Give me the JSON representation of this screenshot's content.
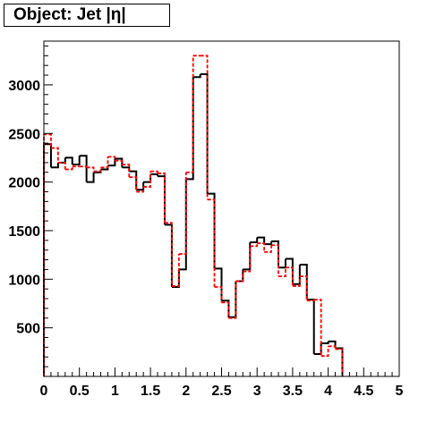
{
  "chart_data": {
    "type": "histogram",
    "title": "Object: Jet |η|",
    "xlabel": "",
    "ylabel": "",
    "xlim": [
      0,
      5
    ],
    "ylim": [
      0,
      3450
    ],
    "bin_width": 0.1,
    "x_ticks": [
      0,
      0.5,
      1,
      1.5,
      2,
      2.5,
      3,
      3.5,
      4,
      4.5,
      5
    ],
    "x_tick_labels": [
      "0",
      "0.5",
      "1",
      "1.5",
      "2",
      "2.5",
      "3",
      "3.5",
      "4",
      "4.5",
      "5"
    ],
    "y_ticks": [
      500,
      1000,
      1500,
      2000,
      2500,
      3000
    ],
    "y_tick_labels": [
      "500",
      "1000",
      "1500",
      "2000",
      "2500",
      "3000"
    ],
    "grid": false,
    "series": [
      {
        "style": "solid",
        "color": "#000000",
        "values": [
          2390,
          2150,
          2200,
          2250,
          2180,
          2270,
          2000,
          2100,
          2130,
          2170,
          2240,
          2150,
          2110,
          1920,
          2000,
          2080,
          2060,
          1560,
          920,
          1100,
          2030,
          3080,
          3110,
          1880,
          1110,
          780,
          610,
          980,
          1100,
          1380,
          1430,
          1360,
          1390,
          1120,
          1210,
          950,
          1150,
          790,
          230,
          340,
          360,
          290
        ]
      },
      {
        "style": "dashed",
        "color": "#ff0000",
        "values": [
          2490,
          2350,
          2200,
          2130,
          2160,
          2160,
          2150,
          2110,
          2150,
          2260,
          2220,
          2180,
          2050,
          1900,
          1950,
          2110,
          2090,
          1580,
          930,
          1260,
          2100,
          3300,
          3300,
          1820,
          920,
          760,
          600,
          980,
          1080,
          1340,
          1370,
          1280,
          1350,
          1030,
          1120,
          930,
          1030,
          780,
          790,
          210,
          310,
          280
        ]
      }
    ]
  }
}
